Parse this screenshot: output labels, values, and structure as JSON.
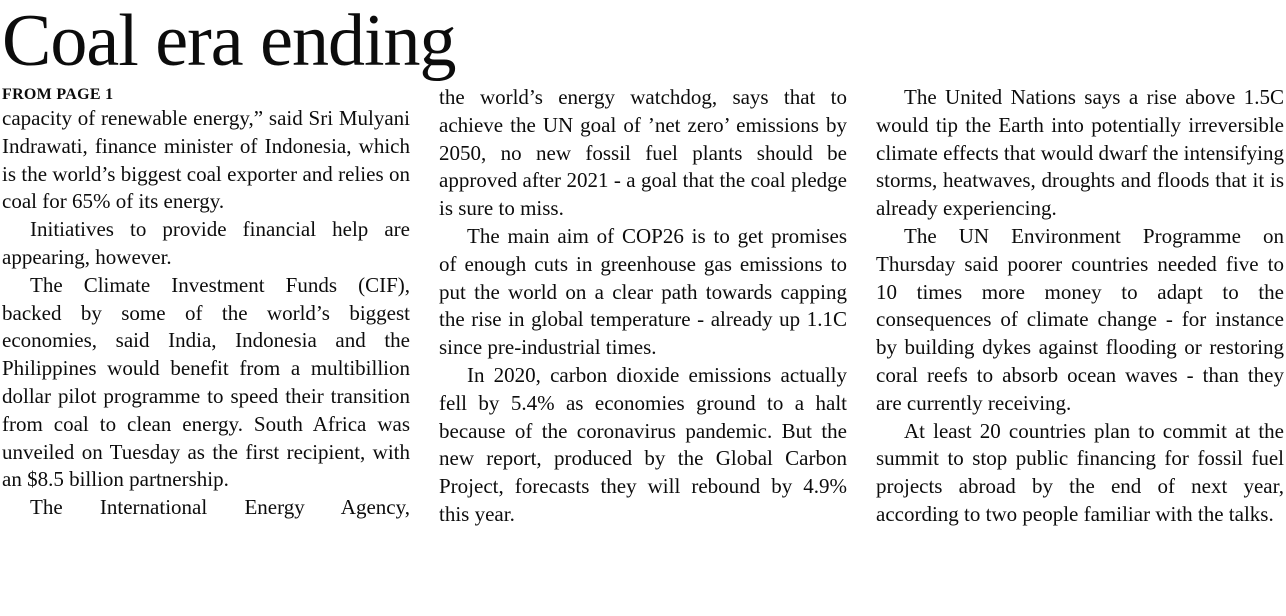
{
  "article": {
    "title": "Coal era ending",
    "kicker": "FROM PAGE 1",
    "columns": [
      {
        "paragraphs": [
          "capacity of renewable energy,” said Sri Mulyani Indrawati, finance minister of Indonesia, which is the world’s biggest coal exporter and relies on coal for 65% of its energy.",
          "Initiatives to provide financial help are appearing, however.",
          "The Climate Investment Funds (CIF), backed by some of the world’s biggest economies, said India, Indonesia and the Philippines would benefit from a multibillion dollar pilot programme to speed their transition from coal to clean energy. South Africa was unveiled on Tuesday as the first recipient, with an $8.5 billion partnership.",
          "The International Energy Agency,"
        ]
      },
      {
        "paragraphs": [
          "the world’s energy watchdog, says that to achieve the UN goal of ’net zero’ emissions by 2050, no new fossil fuel plants should be approved after 2021 - a goal that the coal pledge is sure to miss.",
          "The main aim of COP26 is to get promises of enough cuts in greenhouse gas emissions to put the world on a clear path towards capping the rise in global temperature - already up 1.1C since pre-industrial times.",
          "In 2020, carbon dioxide emissions actually fell by 5.4% as economies ground to a halt because of the coronavirus pandemic. But the new report, produced by the Global Carbon Project, forecasts they will rebound by 4.9% this year."
        ]
      },
      {
        "paragraphs": [
          "The United Nations says a rise above 1.5C would tip the Earth into potentially irreversible climate effects that would dwarf the intensifying storms, heatwaves, droughts and floods that it is already experiencing.",
          "The UN Environment Programme on Thursday said poorer countries needed five to 10 times more money to adapt to the consequences of climate change - for instance by building dykes against flooding or restoring coral reefs to absorb ocean waves - than they are currently receiving.",
          "At least 20 countries plan to commit at the summit to stop public financing for fossil fuel projects abroad by the end of next year, according to two people familiar with the talks."
        ]
      }
    ]
  }
}
